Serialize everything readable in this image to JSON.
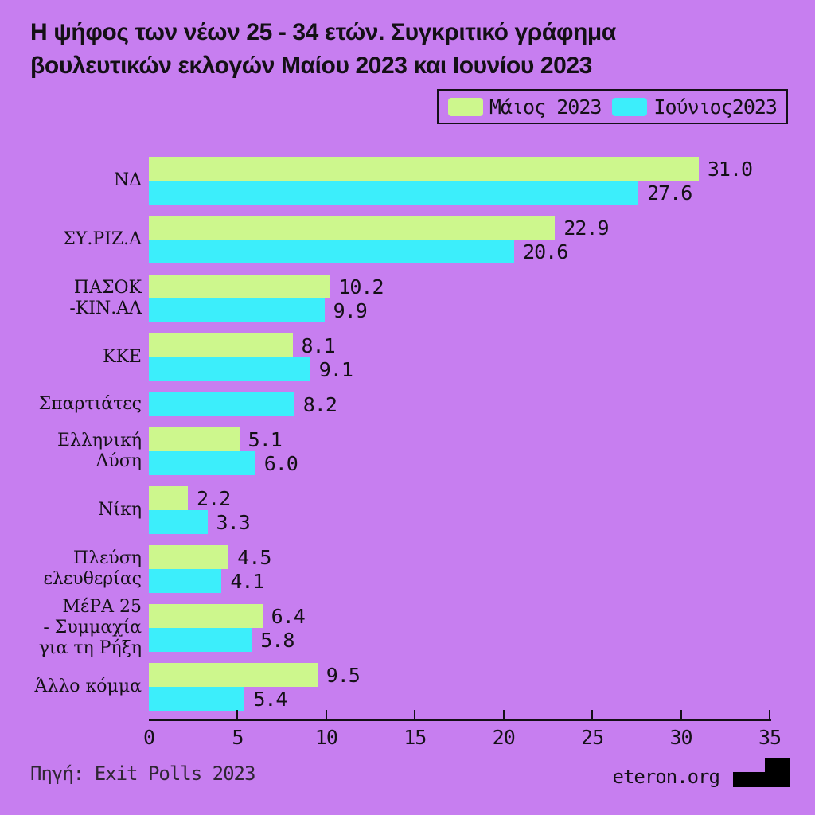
{
  "title": {
    "line1": "Η ψήφος των νέων 25 - 34 ετών. Συγκριτικό γράφημα",
    "line2": "βουλευτικών εκλογών Μαίου 2023 και Ιουνίου 2023"
  },
  "legend": {
    "items": [
      {
        "label": "Μάιος 2023",
        "color": "#cdf78d"
      },
      {
        "label": "Ιούνιος2023",
        "color": "#3ceefb"
      }
    ]
  },
  "chart_data": {
    "type": "bar",
    "orientation": "horizontal",
    "title": "Η ψήφος των νέων 25 - 34 ετών. Συγκριτικό γράφημα βουλευτικών εκλογών Μαίου 2023 και Ιουνίου 2023",
    "categories": [
      "ΝΔ",
      "ΣΥ.ΡΙΖ.Α",
      "ΠΑΣΟΚ -ΚΙΝ.ΑΛ",
      "ΚΚΕ",
      "Σπαρτιάτες",
      "Ελληνική Λύση",
      "Νίκη",
      "Πλεύση ελευθερίας",
      "ΜέΡΑ 25 - Συμμαχία για τη Ρήξη",
      "Άλλο κόμμα"
    ],
    "category_lines": [
      [
        "ΝΔ"
      ],
      [
        "ΣΥ.ΡΙΖ.Α"
      ],
      [
        "ΠΑΣΟΚ",
        "-ΚΙΝ.ΑΛ"
      ],
      [
        "ΚΚΕ"
      ],
      [
        "Σπαρτιάτες"
      ],
      [
        "Ελληνική",
        "Λύση"
      ],
      [
        "Νίκη"
      ],
      [
        "Πλεύση",
        "ελευθερίας"
      ],
      [
        "ΜέΡΑ 25",
        "- Συμμαχία",
        "για τη Ρήξη"
      ],
      [
        "Άλλο κόμμα"
      ]
    ],
    "series": [
      {
        "name": "Μάιος 2023",
        "color": "#cdf78d",
        "values": [
          31.0,
          22.9,
          10.2,
          8.1,
          null,
          5.1,
          2.2,
          4.5,
          6.4,
          9.5
        ]
      },
      {
        "name": "Ιούνιος2023",
        "color": "#3ceefb",
        "values": [
          27.6,
          20.6,
          9.9,
          9.1,
          8.2,
          6.0,
          3.3,
          4.1,
          5.8,
          5.4
        ]
      }
    ],
    "xlim": [
      0,
      35
    ],
    "xticks": [
      0,
      5,
      10,
      15,
      20,
      25,
      30,
      35
    ],
    "grid": false,
    "legend_position": "top-right",
    "value_labels": "one-decimal"
  },
  "footer": {
    "source": "Πηγή: Exit Polls 2023",
    "site": "eteron.org",
    "logo": "eteron-step-logo"
  },
  "colors": {
    "background": "#c77ef0",
    "text": "#141016",
    "may": "#cdf78d",
    "june": "#3ceefb"
  }
}
